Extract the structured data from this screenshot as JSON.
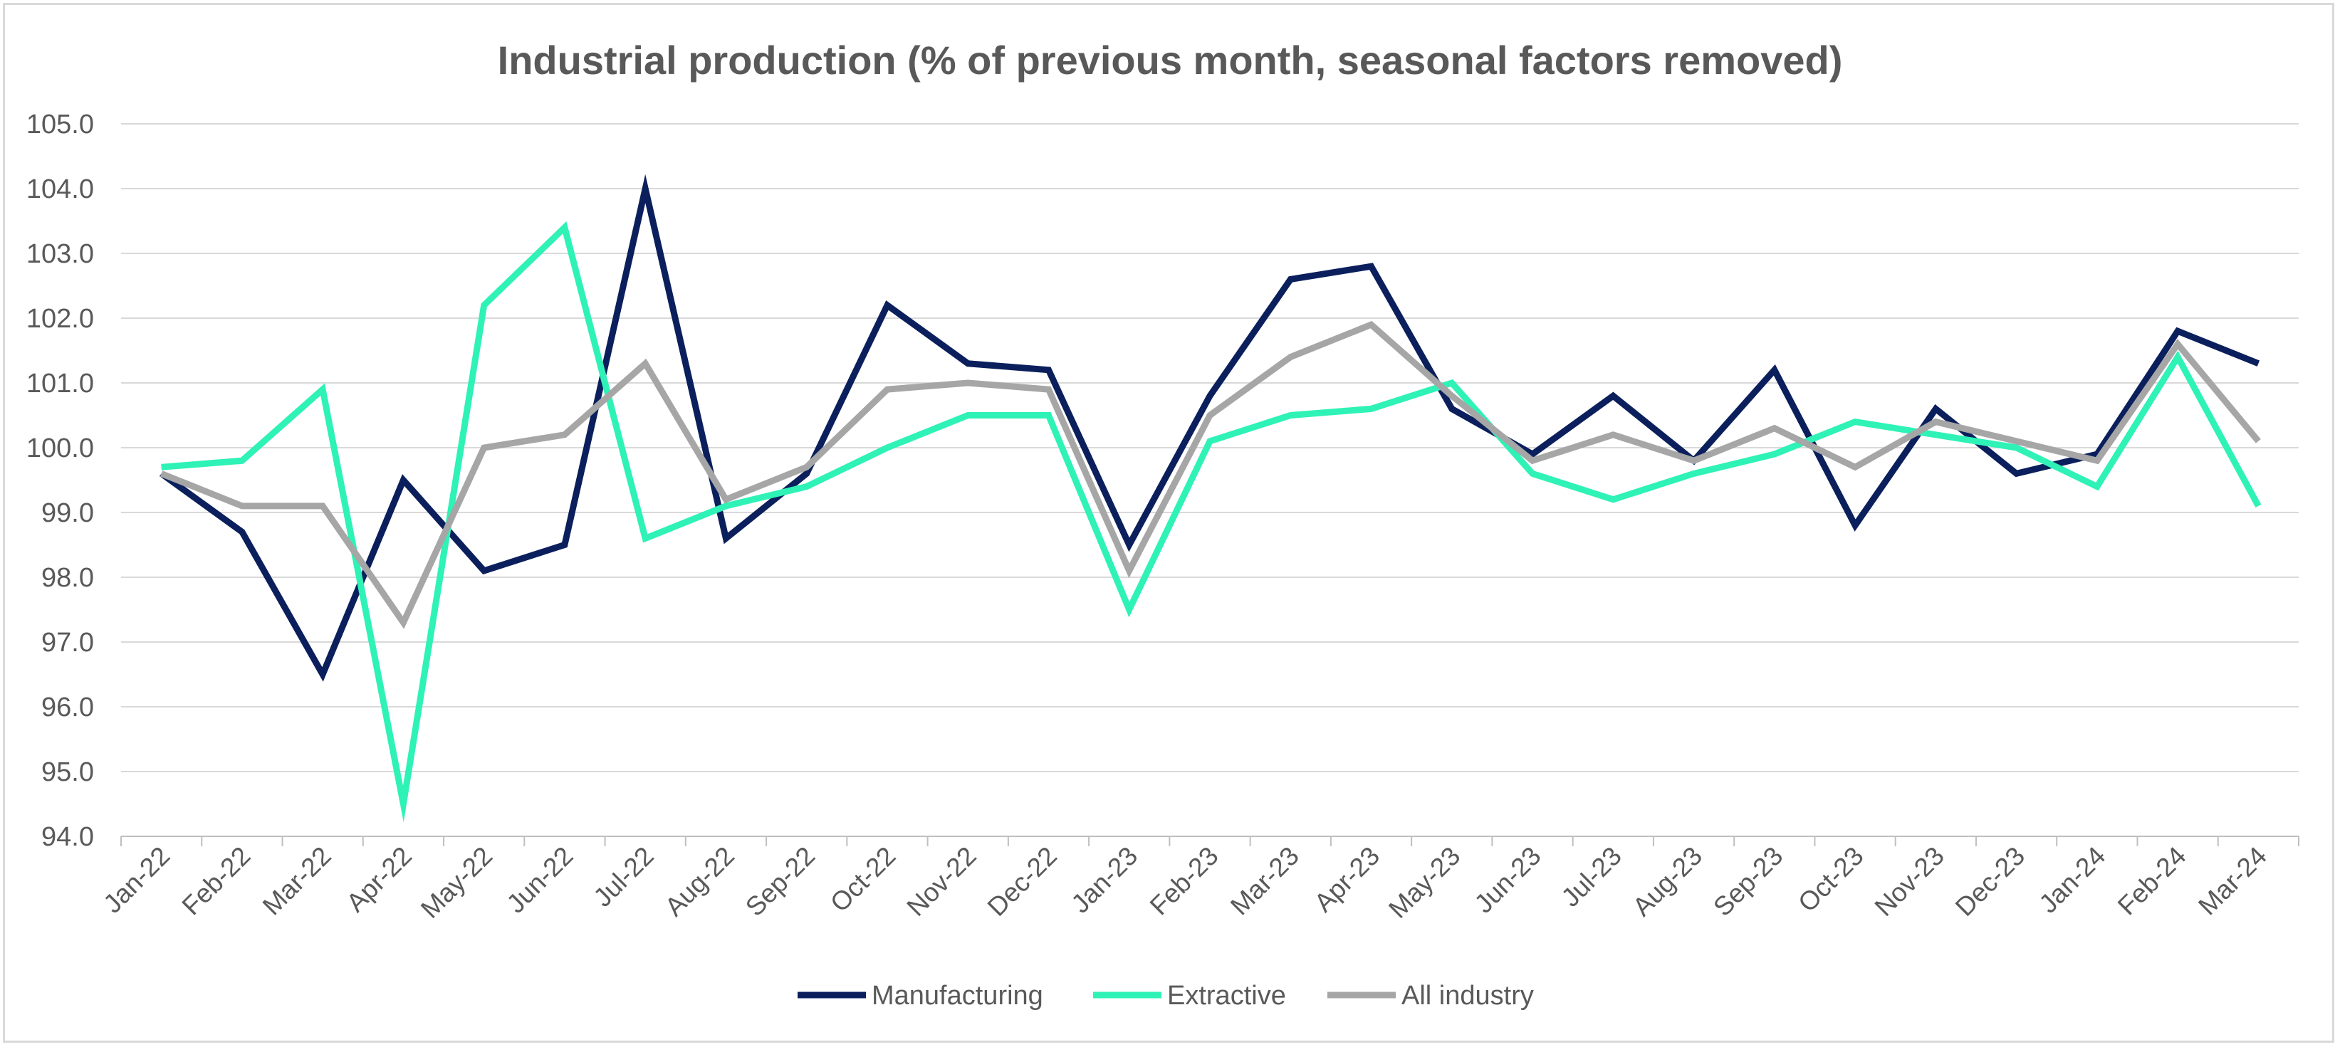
{
  "chart_data": {
    "type": "line",
    "title": "Industrial production (% of previous month, seasonal factors removed)",
    "xlabel": "",
    "ylabel": "",
    "ylim": [
      94.0,
      105.0
    ],
    "yticks": [
      "94.0",
      "95.0",
      "96.0",
      "97.0",
      "98.0",
      "99.0",
      "100.0",
      "101.0",
      "102.0",
      "103.0",
      "104.0",
      "105.0"
    ],
    "grid": "horizontal",
    "legend_position": "bottom",
    "categories": [
      "Jan-22",
      "Feb-22",
      "Mar-22",
      "Apr-22",
      "May-22",
      "Jun-22",
      "Jul-22",
      "Aug-22",
      "Sep-22",
      "Oct-22",
      "Nov-22",
      "Dec-22",
      "Jan-23",
      "Feb-23",
      "Mar-23",
      "Apr-23",
      "May-23",
      "Jun-23",
      "Jul-23",
      "Aug-23",
      "Sep-23",
      "Oct-23",
      "Nov-23",
      "Dec-23",
      "Jan-24",
      "Feb-24",
      "Mar-24"
    ],
    "series": [
      {
        "name": "Manufacturing",
        "color": "#0b1f5c",
        "values": [
          99.6,
          98.7,
          96.5,
          99.5,
          98.1,
          98.5,
          104.0,
          98.6,
          99.6,
          102.2,
          101.3,
          101.2,
          98.5,
          100.8,
          102.6,
          102.8,
          100.6,
          99.9,
          100.8,
          99.8,
          101.2,
          98.8,
          100.6,
          99.6,
          99.9,
          101.8,
          101.3
        ]
      },
      {
        "name": "Extractive",
        "color": "#2ef2b6",
        "values": [
          99.7,
          99.8,
          100.9,
          94.5,
          102.2,
          103.4,
          98.6,
          99.1,
          99.4,
          100.0,
          100.5,
          100.5,
          97.5,
          100.1,
          100.5,
          100.6,
          101.0,
          99.6,
          99.2,
          99.6,
          99.9,
          100.4,
          100.2,
          100.0,
          99.4,
          101.4,
          99.1
        ]
      },
      {
        "name": "All industry",
        "color": "#a6a6a6",
        "values": [
          99.6,
          99.1,
          99.1,
          97.3,
          100.0,
          100.2,
          101.3,
          99.2,
          99.7,
          100.9,
          101.0,
          100.9,
          98.1,
          100.5,
          101.4,
          101.9,
          100.8,
          99.8,
          100.2,
          99.8,
          100.3,
          99.7,
          100.4,
          100.1,
          99.8,
          101.6,
          100.1
        ]
      }
    ]
  }
}
